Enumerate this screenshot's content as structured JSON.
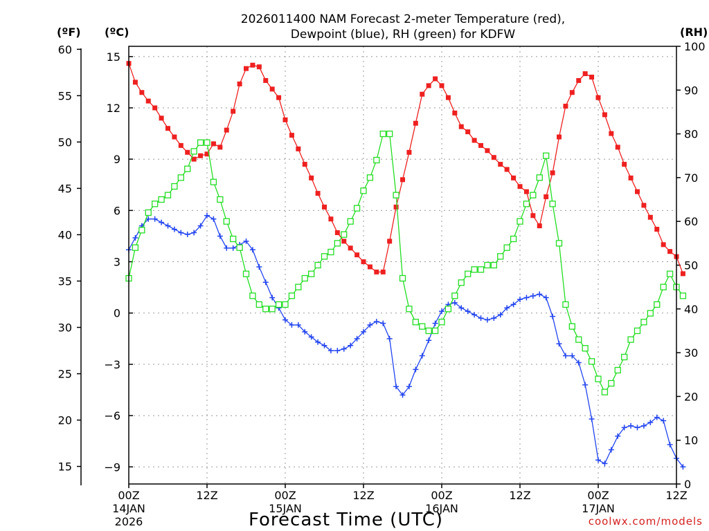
{
  "chart_data": {
    "type": "line",
    "title": {
      "line1": "2026011400 NAM Forecast 2-meter Temperature (red),",
      "line2": "Dewpoint (blue), RH (green) for KDFW"
    },
    "units": {
      "fahrenheit": "(ºF)",
      "celsius": "(ºC)",
      "rh": "(RH)"
    },
    "xlabel": "Forecast Time (UTC)",
    "credit": "coolwx.com/models",
    "x_hours_range": [
      0,
      84
    ],
    "x_ticks": [
      {
        "hour": 0,
        "label": "00Z",
        "date": "14JAN",
        "year": "2026"
      },
      {
        "hour": 12,
        "label": "12Z",
        "date": "",
        "year": ""
      },
      {
        "hour": 24,
        "label": "00Z",
        "date": "15JAN",
        "year": ""
      },
      {
        "hour": 36,
        "label": "12Z",
        "date": "",
        "year": ""
      },
      {
        "hour": 48,
        "label": "00Z",
        "date": "16JAN",
        "year": ""
      },
      {
        "hour": 60,
        "label": "12Z",
        "date": "",
        "year": ""
      },
      {
        "hour": 72,
        "label": "00Z",
        "date": "17JAN",
        "year": ""
      },
      {
        "hour": 84,
        "label": "12Z",
        "date": "",
        "year": ""
      }
    ],
    "celsius_axis": {
      "range": [
        -10,
        15.6
      ],
      "ticks": [
        "15",
        "12",
        "9",
        "6",
        "3",
        "0",
        "−3",
        "−6",
        "−9"
      ]
    },
    "fahrenheit_axis": {
      "range": [
        14,
        60.1
      ],
      "ticks": [
        "60",
        "55",
        "50",
        "45",
        "40",
        "35",
        "30",
        "25",
        "20",
        "15"
      ]
    },
    "rh_axis": {
      "range": [
        0,
        100
      ],
      "ticks": [
        "100",
        "90",
        "80",
        "70",
        "60",
        "50",
        "40",
        "30",
        "20",
        "10",
        "0"
      ]
    },
    "series": [
      {
        "name": "2-meter Temperature",
        "unit": "°C",
        "color": "#ee2020",
        "marker": "filled-square",
        "values": [
          14.6,
          13.5,
          12.9,
          12.4,
          12.0,
          11.4,
          10.8,
          10.3,
          9.8,
          9.4,
          9.0,
          9.2,
          9.3,
          9.9,
          9.7,
          10.7,
          11.8,
          13.4,
          14.3,
          14.5,
          14.4,
          13.6,
          13.1,
          12.6,
          11.3,
          10.4,
          9.6,
          8.7,
          7.9,
          7.0,
          6.2,
          5.5,
          4.7,
          4.2,
          3.8,
          3.4,
          3.0,
          2.7,
          2.4,
          2.4,
          4.2,
          6.2,
          7.8,
          9.4,
          11.1,
          12.8,
          13.3,
          13.7,
          13.3,
          12.6,
          11.7,
          10.9,
          10.6,
          10.1,
          9.8,
          9.5,
          9.1,
          8.7,
          8.4,
          7.9,
          7.4,
          7.1,
          5.7,
          5.1,
          6.8,
          8.2,
          10.3,
          12.1,
          12.9,
          13.6,
          14.0,
          13.8,
          12.6,
          11.6,
          10.5,
          9.7,
          8.7,
          7.9,
          7.1,
          6.3,
          5.6,
          4.9,
          4.0,
          3.6,
          3.3,
          2.3
        ]
      },
      {
        "name": "Dewpoint",
        "unit": "°C",
        "color": "#2244ee",
        "marker": "plus",
        "values": [
          3.7,
          4.4,
          5.1,
          5.5,
          5.5,
          5.3,
          5.1,
          4.9,
          4.7,
          4.6,
          4.7,
          5.1,
          5.7,
          5.5,
          4.5,
          3.8,
          3.8,
          4.0,
          4.2,
          3.7,
          2.7,
          1.8,
          0.9,
          0.3,
          -0.4,
          -0.7,
          -0.7,
          -1.1,
          -1.4,
          -1.7,
          -1.9,
          -2.2,
          -2.2,
          -2.1,
          -1.9,
          -1.5,
          -1.1,
          -0.7,
          -0.5,
          -0.6,
          -1.5,
          -4.3,
          -4.8,
          -4.3,
          -3.3,
          -2.5,
          -1.6,
          -0.6,
          0.1,
          0.5,
          0.6,
          0.3,
          0.1,
          -0.1,
          -0.3,
          -0.4,
          -0.3,
          -0.1,
          0.3,
          0.5,
          0.8,
          0.9,
          1.0,
          1.1,
          0.9,
          -0.2,
          -1.8,
          -2.5,
          -2.5,
          -2.9,
          -4.2,
          -6.2,
          -8.6,
          -8.8,
          -8.0,
          -7.2,
          -6.7,
          -6.6,
          -6.7,
          -6.6,
          -6.4,
          -6.1,
          -6.3,
          -7.7,
          -8.5,
          -9.0
        ]
      },
      {
        "name": "RH",
        "unit": "%",
        "color": "#22dd22",
        "marker": "open-square",
        "values": [
          47,
          54,
          58,
          62,
          64,
          65,
          66,
          68,
          70,
          72,
          76,
          78,
          78,
          69,
          65,
          60,
          56,
          54,
          48,
          43,
          41,
          40,
          40,
          41,
          41,
          43,
          45,
          47,
          48,
          50,
          52,
          53,
          55,
          57,
          60,
          63,
          67,
          70,
          74,
          80,
          80,
          66,
          47,
          40,
          37,
          36,
          35,
          35,
          37,
          40,
          43,
          46,
          48,
          49,
          49,
          50,
          50,
          52,
          54,
          56,
          60,
          64,
          66,
          70,
          75,
          64,
          55,
          41,
          36,
          33,
          31,
          28,
          24,
          21,
          23,
          26,
          29,
          33,
          35,
          37,
          39,
          41,
          45,
          48,
          45,
          43
        ]
      }
    ]
  }
}
